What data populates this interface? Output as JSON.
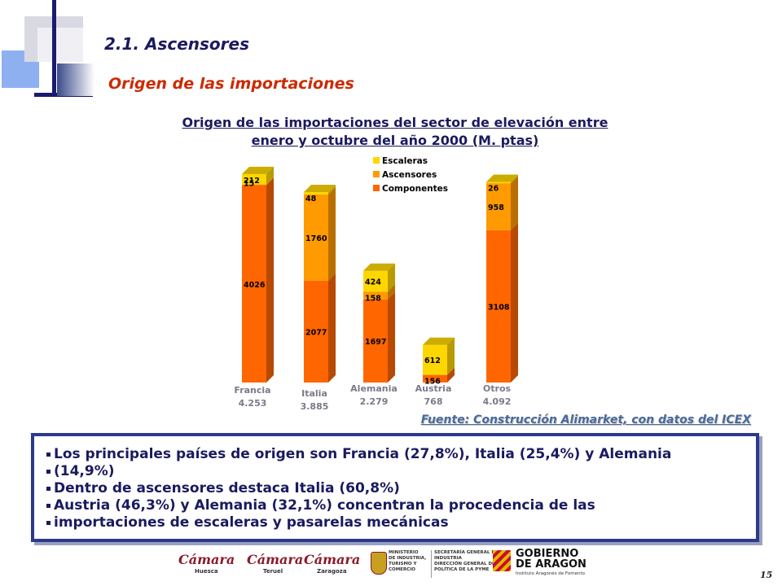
{
  "header": {
    "section_title": "2.1. Ascensores",
    "subtitle": "Origen de las importaciones"
  },
  "chart_data": {
    "type": "bar",
    "stacked": true,
    "title_lines": [
      "Origen de las importaciones del sector de elevación entre",
      "enero y octubre del año 2000 (M. ptas)"
    ],
    "categories": [
      "Francia",
      "Italia",
      "Alemania",
      "Austria",
      "Otros"
    ],
    "category_totals": [
      "4.253",
      "3.885",
      "2.279",
      "768",
      "4.092"
    ],
    "series": [
      {
        "name": "Componentes",
        "color": "#ff6600",
        "values": [
          4026,
          2077,
          1697,
          156,
          3108
        ]
      },
      {
        "name": "Ascensores",
        "color": "#ff9a00",
        "values": [
          15,
          1760,
          158,
          0,
          958
        ]
      },
      {
        "name": "Escaleras",
        "color": "#ffd700",
        "values": [
          212,
          48,
          424,
          612,
          26
        ]
      }
    ],
    "ylim": [
      0,
      4300
    ],
    "legend_position": "top-center",
    "source": "Fuente: Construcción Alimarket, con datos del ICEX"
  },
  "bullets": [
    "Los principales países de origen son Francia (27,8%), Italia (25,4%) y Alemania",
    "(14,9%)",
    "Dentro de ascensores destaca Italia (60,8%)",
    "Austria (46,3%) y Alemania (32,1%) concentran la procedencia de las",
    "importaciones de escaleras y pasarelas mecánicas"
  ],
  "footer": {
    "logos": [
      {
        "name": "Cámara",
        "sub": "Huesca"
      },
      {
        "name": "Cámara",
        "sub": "Teruel"
      },
      {
        "name": "Cámara",
        "sub": "Zaragoza"
      }
    ],
    "ministry_lines": [
      "MINISTERIO",
      "DE INDUSTRIA,",
      "TURISMO Y",
      "COMERCIO"
    ],
    "secretaria_lines": [
      "SECRETARÍA GENERAL DE",
      "INDUSTRIA",
      "DIRECCIÓN GENERAL DE",
      "POLÍTICA DE LA PYME"
    ],
    "gobierno_lines": [
      "GOBIERNO",
      "DE ARAGON"
    ],
    "gobierno_sub": "Instituto Aragonés de Fomento",
    "page_number": "15"
  },
  "colors": {
    "navy": "#1a1a60",
    "accent_red": "#cc2a00",
    "box_border": "#2c3a8c"
  }
}
